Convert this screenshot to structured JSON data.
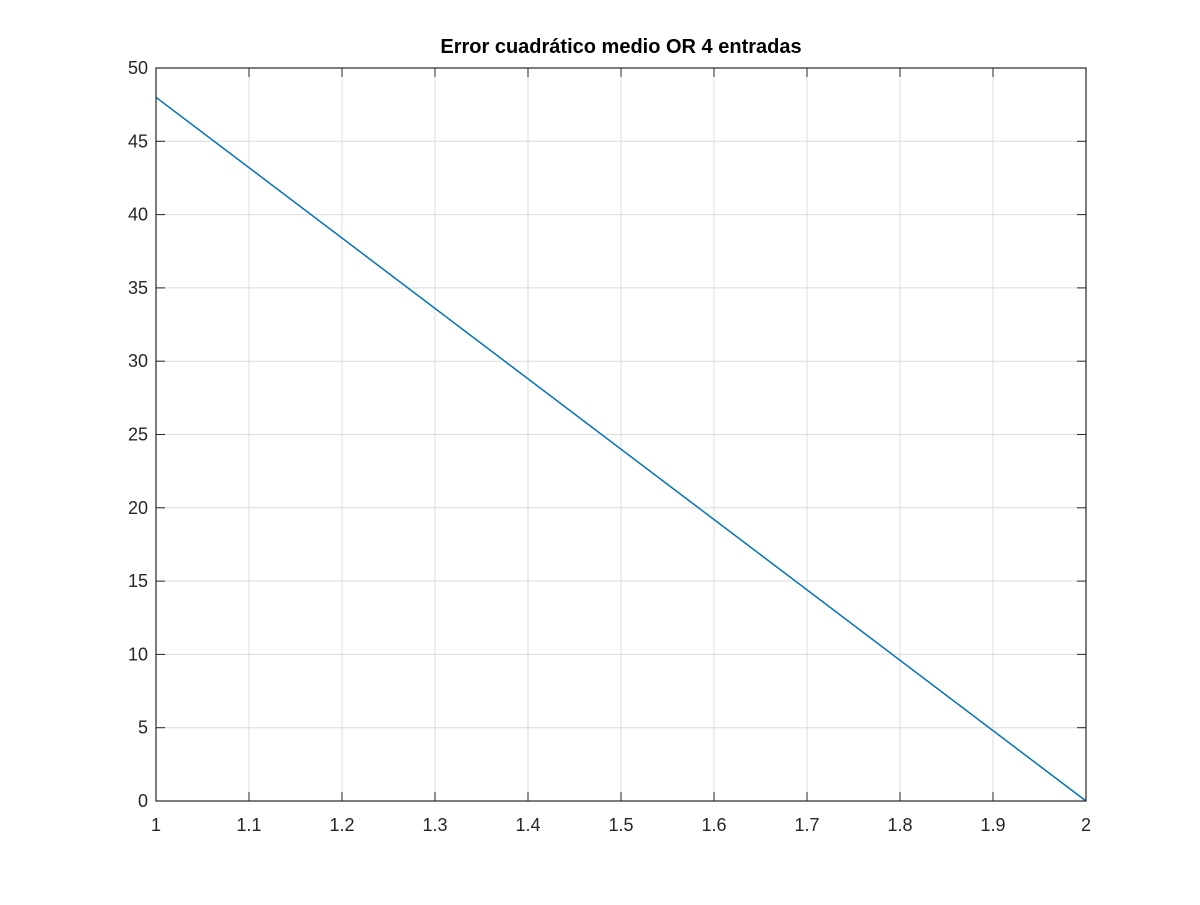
{
  "chart_data": {
    "type": "line",
    "title": "Error cuadrático medio OR 4 entradas",
    "xlabel": "",
    "ylabel": "",
    "xlim": [
      1,
      2
    ],
    "ylim": [
      0,
      50
    ],
    "x_ticks": [
      1,
      1.1,
      1.2,
      1.3,
      1.4,
      1.5,
      1.6,
      1.7,
      1.8,
      1.9,
      2
    ],
    "x_tick_labels": [
      "1",
      "1.1",
      "1.2",
      "1.3",
      "1.4",
      "1.5",
      "1.6",
      "1.7",
      "1.8",
      "1.9",
      "2"
    ],
    "y_ticks": [
      0,
      5,
      10,
      15,
      20,
      25,
      30,
      35,
      40,
      45,
      50
    ],
    "y_tick_labels": [
      "0",
      "5",
      "10",
      "15",
      "20",
      "25",
      "30",
      "35",
      "40",
      "45",
      "50"
    ],
    "grid": true,
    "legend": "none",
    "series": [
      {
        "x": [
          1,
          2
        ],
        "y": [
          48,
          0
        ],
        "color": "#0072BD"
      }
    ]
  }
}
